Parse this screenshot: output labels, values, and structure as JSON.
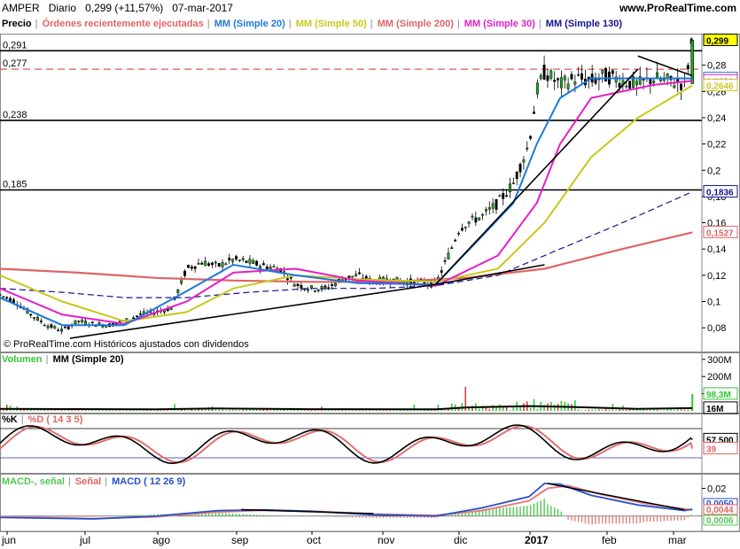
{
  "header": {
    "symbol": "AMPER",
    "period": "Diario",
    "quote": "0,299 (+11,57%)",
    "date": "07-mar-2017",
    "site": "www.ProRealTime.com"
  },
  "colors": {
    "up": "#22aa22",
    "down": "#000000",
    "mm20": "#1e78dc",
    "mm50": "#c8c81e",
    "mm200": "#e06464",
    "mm30": "#e61ec8",
    "mm130": "#14148c",
    "vol": "#32c832",
    "volmm": "#000000",
    "k": "#000000",
    "d": "#e07070",
    "macd_signal": "#50c850",
    "macd_hist": "#e08080",
    "macd": "#2850c8",
    "bg": "#ffffff",
    "grid": "#cccccc"
  },
  "price_panel": {
    "legend": [
      {
        "label": "Precio",
        "color": "#000000"
      },
      {
        "label": "Órdenes recientemente ejecutadas",
        "color": "#e06464"
      },
      {
        "label": "MM (Simple 20)",
        "color": "#1e78dc"
      },
      {
        "label": "MM (Simple 50)",
        "color": "#c8c81e"
      },
      {
        "label": "MM (Simple 200)",
        "color": "#e06464"
      },
      {
        "label": "MM (Simple 30)",
        "color": "#e61ec8"
      },
      {
        "label": "MM (Simple 130)",
        "color": "#14148c"
      }
    ],
    "hlines": [
      {
        "value": 0.291,
        "label": "0,291"
      },
      {
        "value": 0.277,
        "label": "0,277",
        "dashed": true
      },
      {
        "value": 0.238,
        "label": "0,238"
      },
      {
        "value": 0.185,
        "label": "0,185"
      }
    ],
    "ticks": [
      "0,28",
      "0,26",
      "0,24",
      "0,22",
      "0,2",
      "0,18",
      "0,16",
      "0,14",
      "0,12",
      "0,1",
      "0,08"
    ],
    "tick_values": [
      0.28,
      0.26,
      0.24,
      0.22,
      0.2,
      0.18,
      0.16,
      0.14,
      0.12,
      0.1,
      0.08
    ],
    "value_tags": [
      {
        "value": 0.299,
        "label": "0,299",
        "color": "#000000"
      },
      {
        "value": 0.2699,
        "label": "0,2699",
        "color": "#1e78dc"
      },
      {
        "value": 0.2681,
        "label": "0,2681",
        "color": "#e61ec8"
      },
      {
        "value": 0.2646,
        "label": "0,2646",
        "color": "#c8c81e"
      },
      {
        "value": 0.1836,
        "label": "0,1836",
        "color": "#14148c"
      },
      {
        "value": 0.1527,
        "label": "0,1527",
        "color": "#e06464"
      }
    ],
    "copyright": "© ProRealTime.com  Históricos ajustados con dividendos"
  },
  "volume_panel": {
    "legend": [
      {
        "label": "Volumen",
        "color": "#32c832"
      },
      {
        "label": "MM (Simple 20)",
        "color": "#000000"
      }
    ],
    "ticks": [
      "300M",
      "200M",
      "100M"
    ],
    "tick_values": [
      300,
      200,
      100
    ],
    "value_tags": [
      {
        "value": 98.3,
        "label": "98,3M",
        "color": "#32c832"
      },
      {
        "value": 16,
        "label": "16M",
        "color": "#000000"
      }
    ]
  },
  "stoch_panel": {
    "legend": [
      {
        "label": "%K",
        "color": "#000000"
      },
      {
        "label": "%D ( 14 3 5)",
        "color": "#e06464"
      }
    ],
    "value_tags": [
      {
        "value": 57.5,
        "label": "57,500",
        "color": "#000000"
      },
      {
        "value": 39,
        "label": "39",
        "color": "#e06464"
      }
    ]
  },
  "macd_panel": {
    "legend": [
      {
        "label": "MACD-, señal",
        "color": "#50c850"
      },
      {
        "label": "Señal",
        "color": "#e06464"
      },
      {
        "label": "MACD ( 12 26 9)",
        "color": "#2850c8"
      }
    ],
    "ticks": [
      "0,02"
    ],
    "tick_values": [
      0.02
    ],
    "value_tags": [
      {
        "value": 0.005,
        "label": "0,0050",
        "color": "#2850c8"
      },
      {
        "value": 0.0044,
        "label": "0,0044",
        "color": "#e06464"
      },
      {
        "value": 0.0006,
        "label": "0,0006",
        "color": "#50c850"
      }
    ]
  },
  "x_axis": [
    "jun",
    "jul",
    "ago",
    "sep",
    "oct",
    "nov",
    "dic",
    "2017",
    "feb",
    "mar"
  ],
  "chart_data": {
    "type": "candlestick",
    "x_axis_labels": [
      "jun",
      "jul",
      "ago",
      "sep",
      "oct",
      "nov",
      "dic",
      "2017",
      "feb",
      "mar"
    ],
    "ylim": [
      0.07,
      0.3
    ],
    "close_series": [
      [
        0,
        0.105
      ],
      [
        10,
        0.1
      ],
      [
        20,
        0.09
      ],
      [
        30,
        0.082
      ],
      [
        40,
        0.078
      ],
      [
        50,
        0.085
      ],
      [
        60,
        0.083
      ],
      [
        70,
        0.082
      ],
      [
        80,
        0.085
      ],
      [
        90,
        0.09
      ],
      [
        100,
        0.092
      ],
      [
        110,
        0.095
      ],
      [
        120,
        0.125
      ],
      [
        130,
        0.13
      ],
      [
        140,
        0.127
      ],
      [
        150,
        0.132
      ],
      [
        160,
        0.13
      ],
      [
        170,
        0.127
      ],
      [
        180,
        0.125
      ],
      [
        190,
        0.113
      ],
      [
        200,
        0.11
      ],
      [
        210,
        0.11
      ],
      [
        220,
        0.117
      ],
      [
        230,
        0.12
      ],
      [
        240,
        0.115
      ],
      [
        250,
        0.117
      ],
      [
        260,
        0.115
      ],
      [
        270,
        0.115
      ],
      [
        280,
        0.113
      ],
      [
        290,
        0.14
      ],
      [
        295,
        0.155
      ],
      [
        300,
        0.16
      ],
      [
        310,
        0.165
      ],
      [
        320,
        0.175
      ],
      [
        330,
        0.19
      ],
      [
        340,
        0.22
      ],
      [
        345,
        0.26
      ],
      [
        350,
        0.275
      ],
      [
        355,
        0.27
      ],
      [
        360,
        0.265
      ],
      [
        370,
        0.27
      ],
      [
        380,
        0.268
      ],
      [
        390,
        0.272
      ],
      [
        400,
        0.268
      ],
      [
        410,
        0.265
      ],
      [
        420,
        0.27
      ],
      [
        430,
        0.268
      ],
      [
        440,
        0.266
      ],
      [
        445,
        0.299
      ]
    ],
    "mm20": [
      [
        0,
        0.103
      ],
      [
        40,
        0.082
      ],
      [
        80,
        0.082
      ],
      [
        120,
        0.108
      ],
      [
        150,
        0.128
      ],
      [
        190,
        0.12
      ],
      [
        230,
        0.114
      ],
      [
        280,
        0.113
      ],
      [
        310,
        0.15
      ],
      [
        330,
        0.175
      ],
      [
        345,
        0.22
      ],
      [
        360,
        0.255
      ],
      [
        380,
        0.27
      ],
      [
        420,
        0.27
      ],
      [
        445,
        0.2699
      ]
    ],
    "mm30": [
      [
        0,
        0.11
      ],
      [
        40,
        0.09
      ],
      [
        80,
        0.083
      ],
      [
        120,
        0.1
      ],
      [
        150,
        0.122
      ],
      [
        190,
        0.125
      ],
      [
        230,
        0.116
      ],
      [
        280,
        0.112
      ],
      [
        320,
        0.135
      ],
      [
        345,
        0.175
      ],
      [
        360,
        0.22
      ],
      [
        380,
        0.255
      ],
      [
        420,
        0.265
      ],
      [
        445,
        0.2681
      ]
    ],
    "mm50": [
      [
        0,
        0.12
      ],
      [
        40,
        0.1
      ],
      [
        80,
        0.085
      ],
      [
        120,
        0.092
      ],
      [
        150,
        0.11
      ],
      [
        190,
        0.12
      ],
      [
        230,
        0.117
      ],
      [
        280,
        0.115
      ],
      [
        320,
        0.125
      ],
      [
        350,
        0.16
      ],
      [
        380,
        0.21
      ],
      [
        410,
        0.24
      ],
      [
        445,
        0.2646
      ]
    ],
    "mm130": [
      [
        0,
        0.11
      ],
      [
        40,
        0.107
      ],
      [
        80,
        0.103
      ],
      [
        120,
        0.103
      ],
      [
        160,
        0.107
      ],
      [
        200,
        0.11
      ],
      [
        240,
        0.11
      ],
      [
        280,
        0.112
      ],
      [
        320,
        0.12
      ],
      [
        360,
        0.14
      ],
      [
        400,
        0.16
      ],
      [
        445,
        0.1836
      ]
    ],
    "mm200": [
      [
        0,
        0.125
      ],
      [
        50,
        0.122
      ],
      [
        100,
        0.118
      ],
      [
        150,
        0.116
      ],
      [
        200,
        0.115
      ],
      [
        250,
        0.115
      ],
      [
        300,
        0.118
      ],
      [
        350,
        0.125
      ],
      [
        400,
        0.14
      ],
      [
        445,
        0.1527
      ]
    ],
    "trendlines": [
      [
        [
          45,
          0.072
        ],
        [
          280,
          0.113
        ]
      ],
      [
        [
          280,
          0.113
        ],
        [
          350,
          0.128
        ]
      ],
      [
        [
          280,
          0.113
        ],
        [
          410,
          0.277
        ]
      ],
      [
        [
          410,
          0.287
        ],
        [
          445,
          0.272
        ]
      ]
    ]
  }
}
